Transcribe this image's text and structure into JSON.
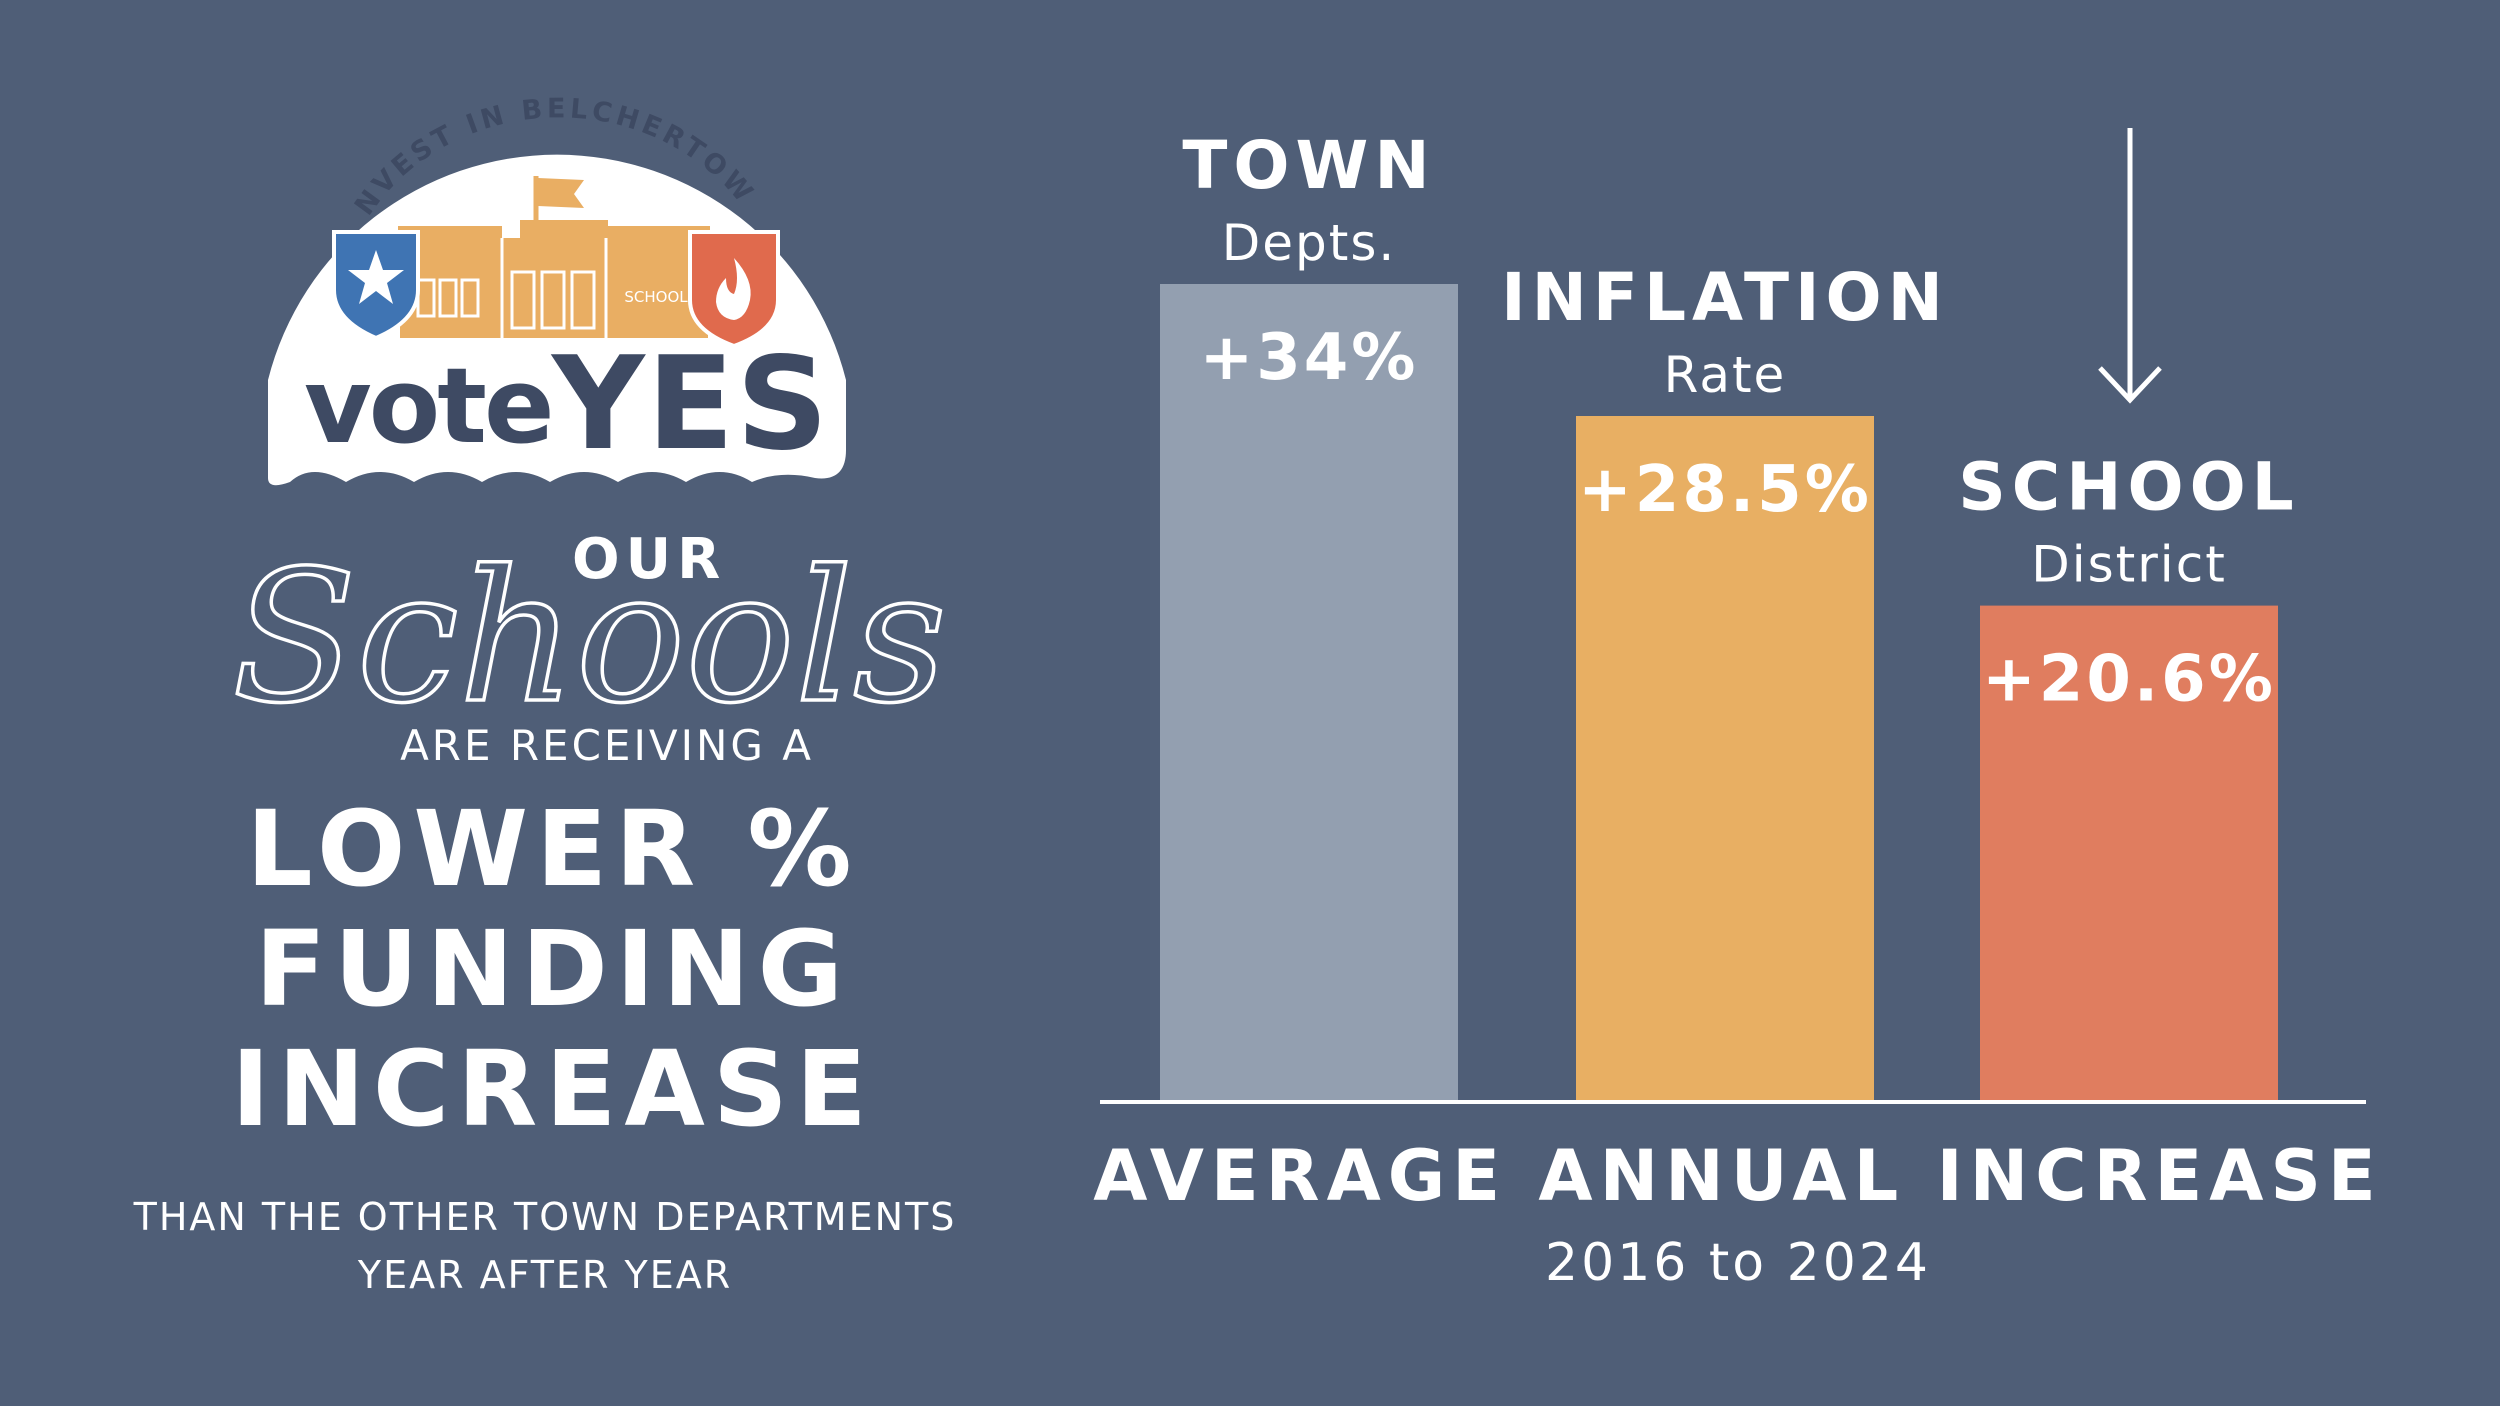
{
  "logo": {
    "arc_text": "INVEST IN BELCHERTOWN",
    "school_sign": "SCHOOL",
    "vote_text": "vote",
    "yes_text": "YES",
    "colors": {
      "shield_blue": "#3f74b3",
      "shield_red": "#e06a4d",
      "building": "#e9ae63",
      "navy": "#3e4a63"
    },
    "icons": [
      "star-shield-icon",
      "flame-shield-icon",
      "school-building-icon",
      "flag-icon"
    ]
  },
  "headline": {
    "our": "OUR",
    "schools": "Schools",
    "are_receiving": "ARE RECEIVING A",
    "line1": "LOWER %",
    "line2": "FUNDING",
    "line3": "INCREASE",
    "sub1": "THAN THE OTHER TOWN DEPARTMENTS",
    "sub2": "YEAR AFTER YEAR"
  },
  "chart_data": {
    "type": "bar",
    "categories": [
      "TOWN Depts.",
      "INFLATION Rate",
      "SCHOOL District"
    ],
    "category_titles": [
      "TOWN",
      "INFLATION",
      "SCHOOL"
    ],
    "category_subtitles": [
      "Depts.",
      "Rate",
      "District"
    ],
    "values": [
      34,
      28.5,
      20.6
    ],
    "value_labels": [
      "+34%",
      "+28.5%",
      "+20.6%"
    ],
    "colors": [
      "#939fb0",
      "#e8af63",
      "#e07d5f"
    ],
    "title": "AVERAGE ANNUAL INCREASE",
    "subtitle": "2016 to 2024",
    "ylim": [
      0,
      34
    ],
    "grid": false,
    "legend": "none",
    "annotation_icon": "down-arrow-icon"
  }
}
